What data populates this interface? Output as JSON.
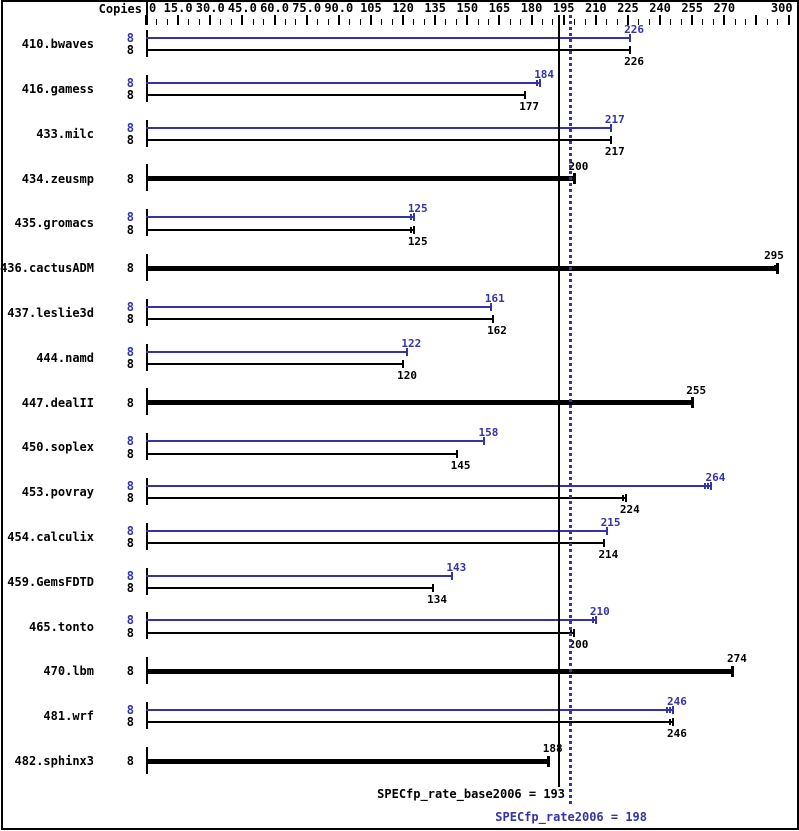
{
  "copies_header": "Copies",
  "colors": {
    "peak_blue": "#3333aa",
    "base_black": "#000000"
  },
  "summary": {
    "base_label": "SPECfp_rate_base2006 = 193",
    "base_value": 193,
    "peak_label": "SPECfp_rate2006 = 198",
    "peak_value": 198
  },
  "reference_lines": [
    {
      "name": "base-mean-line",
      "value": 193,
      "style": "solid",
      "color": "#000000"
    },
    {
      "name": "peak-mean-line",
      "value": 198,
      "style": "dotted",
      "color": "#3333aa"
    }
  ],
  "chart_data": {
    "type": "bar",
    "orientation": "horizontal",
    "xlabel": "",
    "xlim": [
      0,
      300
    ],
    "grid": false,
    "axis": {
      "minor_step": 5,
      "major_step": 15,
      "majors": [
        {
          "value": 0,
          "label": "0"
        },
        {
          "value": 15,
          "label": "15.0"
        },
        {
          "value": 30,
          "label": "30.0"
        },
        {
          "value": 45,
          "label": "45.0"
        },
        {
          "value": 60,
          "label": "60.0"
        },
        {
          "value": 75,
          "label": "75.0"
        },
        {
          "value": 90,
          "label": "90.0"
        },
        {
          "value": 105,
          "label": "105"
        },
        {
          "value": 120,
          "label": "120"
        },
        {
          "value": 135,
          "label": "135"
        },
        {
          "value": 150,
          "label": "150"
        },
        {
          "value": 165,
          "label": "165"
        },
        {
          "value": 180,
          "label": "180"
        },
        {
          "value": 195,
          "label": "195"
        },
        {
          "value": 210,
          "label": "210"
        },
        {
          "value": 225,
          "label": "225"
        },
        {
          "value": 240,
          "label": "240"
        },
        {
          "value": 255,
          "label": "255"
        },
        {
          "value": 270,
          "label": "270"
        },
        {
          "value": 285,
          "label": ""
        },
        {
          "value": 300,
          "label": "300"
        }
      ]
    },
    "rows": [
      {
        "label": "410.bwaves",
        "bars": [
          {
            "kind": "peak",
            "copies": 8,
            "value": 226,
            "end_ticks": 1
          },
          {
            "kind": "base",
            "copies": 8,
            "value": 226,
            "end_ticks": 1
          }
        ]
      },
      {
        "label": "416.gamess",
        "bars": [
          {
            "kind": "peak",
            "copies": 8,
            "value": 184,
            "end_ticks": 2
          },
          {
            "kind": "base",
            "copies": 8,
            "value": 177,
            "end_ticks": 1
          }
        ]
      },
      {
        "label": "433.milc",
        "bars": [
          {
            "kind": "peak",
            "copies": 8,
            "value": 217,
            "end_ticks": 1
          },
          {
            "kind": "base",
            "copies": 8,
            "value": 217,
            "end_ticks": 1
          }
        ]
      },
      {
        "label": "434.zeusmp",
        "bars": [
          {
            "kind": "base-only",
            "copies": 8,
            "value": 200,
            "end_ticks": 1
          }
        ]
      },
      {
        "label": "435.gromacs",
        "bars": [
          {
            "kind": "peak",
            "copies": 8,
            "value": 125,
            "end_ticks": 2
          },
          {
            "kind": "base",
            "copies": 8,
            "value": 125,
            "end_ticks": 2
          }
        ]
      },
      {
        "label": "436.cactusADM",
        "bars": [
          {
            "kind": "base-only",
            "copies": 8,
            "value": 295,
            "end_ticks": 2
          }
        ]
      },
      {
        "label": "437.leslie3d",
        "bars": [
          {
            "kind": "peak",
            "copies": 8,
            "value": 161,
            "end_ticks": 1
          },
          {
            "kind": "base",
            "copies": 8,
            "value": 162,
            "end_ticks": 1
          }
        ]
      },
      {
        "label": "444.namd",
        "bars": [
          {
            "kind": "peak",
            "copies": 8,
            "value": 122,
            "end_ticks": 1
          },
          {
            "kind": "base",
            "copies": 8,
            "value": 120,
            "end_ticks": 1
          }
        ]
      },
      {
        "label": "447.dealII",
        "bars": [
          {
            "kind": "base-only",
            "copies": 8,
            "value": 255,
            "end_ticks": 1
          }
        ]
      },
      {
        "label": "450.soplex",
        "bars": [
          {
            "kind": "peak",
            "copies": 8,
            "value": 158,
            "end_ticks": 1
          },
          {
            "kind": "base",
            "copies": 8,
            "value": 145,
            "end_ticks": 1
          }
        ]
      },
      {
        "label": "453.povray",
        "bars": [
          {
            "kind": "peak",
            "copies": 8,
            "value": 264,
            "end_ticks": 3
          },
          {
            "kind": "base",
            "copies": 8,
            "value": 224,
            "end_ticks": 2
          }
        ]
      },
      {
        "label": "454.calculix",
        "bars": [
          {
            "kind": "peak",
            "copies": 8,
            "value": 215,
            "end_ticks": 1
          },
          {
            "kind": "base",
            "copies": 8,
            "value": 214,
            "end_ticks": 1
          }
        ]
      },
      {
        "label": "459.GemsFDTD",
        "bars": [
          {
            "kind": "peak",
            "copies": 8,
            "value": 143,
            "end_ticks": 1
          },
          {
            "kind": "base",
            "copies": 8,
            "value": 134,
            "end_ticks": 1
          }
        ]
      },
      {
        "label": "465.tonto",
        "bars": [
          {
            "kind": "peak",
            "copies": 8,
            "value": 210,
            "end_ticks": 2
          },
          {
            "kind": "base",
            "copies": 8,
            "value": 200,
            "end_ticks": 2
          }
        ]
      },
      {
        "label": "470.lbm",
        "bars": [
          {
            "kind": "base-only",
            "copies": 8,
            "value": 274,
            "end_ticks": 1
          }
        ]
      },
      {
        "label": "481.wrf",
        "bars": [
          {
            "kind": "peak",
            "copies": 8,
            "value": 246,
            "end_ticks": 3
          },
          {
            "kind": "base",
            "copies": 8,
            "value": 246,
            "end_ticks": 2
          }
        ]
      },
      {
        "label": "482.sphinx3",
        "bars": [
          {
            "kind": "base-only",
            "copies": 8,
            "value": 188,
            "end_ticks": 1
          }
        ]
      }
    ]
  }
}
